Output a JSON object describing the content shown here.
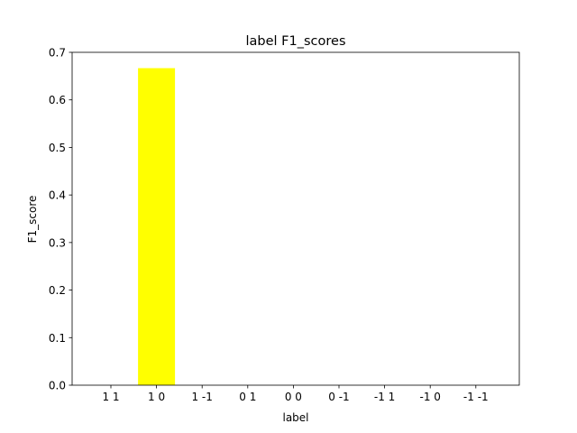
{
  "chart_data": {
    "type": "bar",
    "title": "label F1_scores",
    "xlabel": "label",
    "ylabel": "F1_score",
    "categories": [
      "1 1",
      "1 0",
      "1 -1",
      "0 1",
      "0 0",
      "0 -1",
      "-1 1",
      "-1 0",
      "-1 -1"
    ],
    "values": [
      0,
      0.6667,
      0,
      0,
      0,
      0,
      0,
      0,
      0
    ],
    "ylim": [
      0,
      0.7
    ],
    "yticks": [
      0.0,
      0.1,
      0.2,
      0.3,
      0.4,
      0.5,
      0.6,
      0.7
    ],
    "ytick_labels": [
      "0.0",
      "0.1",
      "0.2",
      "0.3",
      "0.4",
      "0.5",
      "0.6",
      "0.7"
    ],
    "bar_color": "#ffff00",
    "grid": false,
    "legend": "none"
  }
}
